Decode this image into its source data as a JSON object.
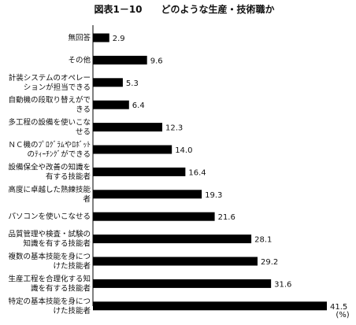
{
  "chart_data": {
    "type": "bar",
    "orientation": "horizontal",
    "title": "図表1－10　　どのような生産・技術職か",
    "unit": "(%)",
    "grid": false,
    "legend": "none",
    "xlim": [
      0,
      42
    ],
    "categories": [
      [
        "無回答"
      ],
      [
        "その他"
      ],
      [
        "計装システムのオペレー",
        "ションが担当できる"
      ],
      [
        "自動機の段取り替えがで",
        "きる"
      ],
      [
        "多工程の設備を使いこな",
        "せる"
      ],
      [
        "ＮＣ機のﾌﾟﾛｸﾞﾗﾑやﾛﾎﾞｯﾄ",
        "のﾃｨｰﾁﾝｸﾞができる"
      ],
      [
        "設備保全や改善の知識を",
        "有する技能者"
      ],
      [
        "高度に卓越した熟練技能",
        "者"
      ],
      [
        "パソコンを使いこなせる"
      ],
      [
        "品質管理や検査・試験の",
        "知識を有する技能者"
      ],
      [
        "複数の基本技能を身につ",
        "けた技能者"
      ],
      [
        "生産工程を合理化する知",
        "識を有する技能者"
      ],
      [
        "特定の基本技能を身につ",
        "けた技能者"
      ]
    ],
    "values": [
      2.9,
      9.6,
      5.3,
      6.4,
      12.3,
      14.0,
      16.4,
      19.3,
      21.6,
      28.1,
      29.2,
      31.6,
      41.5
    ],
    "value_labels": [
      "2.9",
      "9.6",
      "5.3",
      "6.4",
      "12.3",
      "14.0",
      "16.4",
      "19.3",
      "21.6",
      "28.1",
      "29.2",
      "31.6",
      "41.5"
    ],
    "bar_color": "#000000"
  }
}
